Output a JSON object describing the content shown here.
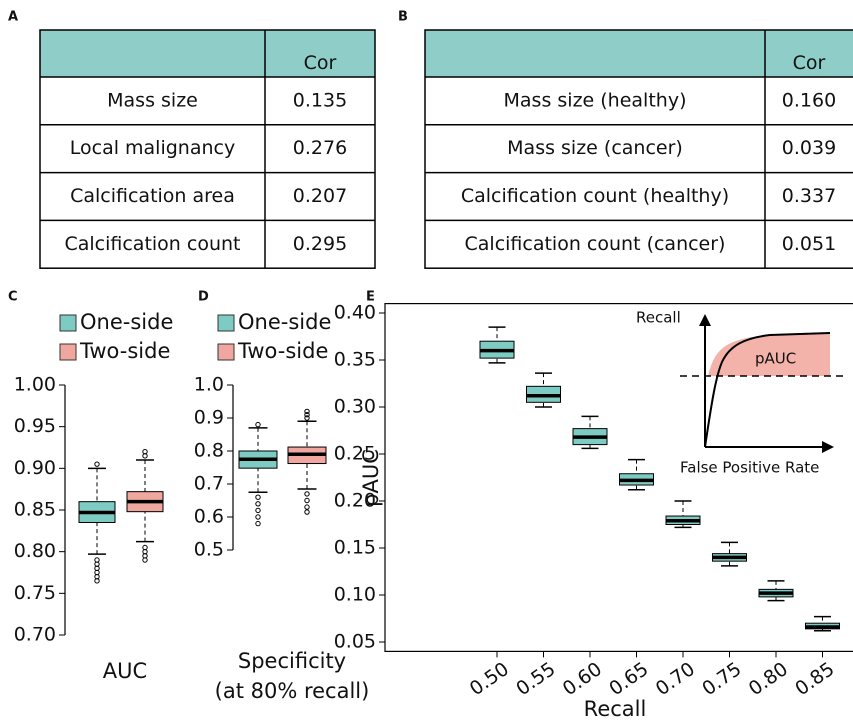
{
  "panel_labels": [
    "A",
    "B",
    "C",
    "D",
    "E"
  ],
  "tables": [
    {
      "header": "Cor",
      "rows": [
        [
          "Mass size",
          "0.135"
        ],
        [
          "Local malignancy",
          "0.276"
        ],
        [
          "Calcification area",
          "0.207"
        ],
        [
          "Calcification count",
          "0.295"
        ]
      ]
    },
    {
      "header": "Cor",
      "rows": [
        [
          "Mass size (healthy)",
          "0.160"
        ],
        [
          "Mass size (cancer)",
          "0.039"
        ],
        [
          "Calcification count (healthy)",
          "0.337"
        ],
        [
          "Calcification count (cancer)",
          "0.051"
        ]
      ]
    }
  ],
  "chart_data": [
    {
      "type": "box",
      "x_label": [
        "AUC"
      ],
      "ylim": [
        0.7,
        1.0
      ],
      "yticks": [
        {
          "value": 0.7,
          "label": "0.70"
        },
        0.75,
        {
          "value": 0.8,
          "label": "0.80"
        },
        0.85,
        {
          "value": 0.9,
          "label": "0.90"
        },
        0.95,
        {
          "value": 1.0,
          "label": "1.00"
        }
      ],
      "series": [
        {
          "name": "One-side",
          "color": "#7ecbc4",
          "boxes": [
            {
              "whislo": 0.797,
              "q1": 0.835,
              "med": 0.847,
              "q3": 0.86,
              "whishi": 0.9,
              "fliers": [
                0.79,
                0.785,
                0.78,
                0.775,
                0.77,
                0.765,
                0.905
              ]
            }
          ]
        },
        {
          "name": "Two-side",
          "color": "#f0a7a0",
          "boxes": [
            {
              "whislo": 0.812,
              "q1": 0.848,
              "med": 0.86,
              "q3": 0.872,
              "whishi": 0.91,
              "fliers": [
                0.805,
                0.8,
                0.795,
                0.79,
                0.915,
                0.92
              ]
            }
          ]
        }
      ]
    },
    {
      "type": "box",
      "x_label": [
        "Specificity",
        "(at 80% recall)"
      ],
      "ylim": [
        0.5,
        1.0
      ],
      "yticks": [
        0.5,
        0.6,
        0.7,
        0.8,
        0.9,
        {
          "value": 1.0,
          "label": "1.0"
        }
      ],
      "series": [
        {
          "name": "One-side",
          "color": "#7ecbc4",
          "boxes": [
            {
              "whislo": 0.675,
              "q1": 0.748,
              "med": 0.775,
              "q3": 0.8,
              "whishi": 0.87,
              "fliers": [
                0.66,
                0.64,
                0.62,
                0.6,
                0.58,
                0.88
              ]
            }
          ]
        },
        {
          "name": "Two-side",
          "color": "#f0a7a0",
          "boxes": [
            {
              "whislo": 0.685,
              "q1": 0.762,
              "med": 0.79,
              "q3": 0.812,
              "whishi": 0.89,
              "fliers": [
                0.67,
                0.65,
                0.63,
                0.615,
                0.9,
                0.91,
                0.92
              ]
            }
          ]
        }
      ]
    },
    {
      "type": "box",
      "x_label": [
        "Recall"
      ],
      "y_label": "pAUC",
      "ylim": [
        0.04,
        0.41
      ],
      "yticks": [
        0.05,
        {
          "value": 0.1,
          "label": "0.10"
        },
        0.15,
        {
          "value": 0.2,
          "label": "0.20"
        },
        0.25,
        {
          "value": 0.3,
          "label": "0.30"
        },
        0.35,
        {
          "value": 0.4,
          "label": "0.40"
        }
      ],
      "categories": [
        "0.50",
        "0.55",
        "0.60",
        "0.65",
        "0.70",
        "0.75",
        "0.80",
        "0.85"
      ],
      "annotations": [
        "Recall",
        "pAUC",
        "False Positive Rate"
      ],
      "series": [
        {
          "color": "#7ecbc4",
          "boxes": [
            {
              "whislo": 0.347,
              "q1": 0.352,
              "med": 0.36,
              "q3": 0.37,
              "whishi": 0.385
            },
            {
              "whislo": 0.3,
              "q1": 0.305,
              "med": 0.312,
              "q3": 0.322,
              "whishi": 0.336
            },
            {
              "whislo": 0.256,
              "q1": 0.26,
              "med": 0.268,
              "q3": 0.277,
              "whishi": 0.29
            },
            {
              "whislo": 0.212,
              "q1": 0.217,
              "med": 0.222,
              "q3": 0.229,
              "whishi": 0.244
            },
            {
              "whislo": 0.172,
              "q1": 0.175,
              "med": 0.179,
              "q3": 0.184,
              "whishi": 0.2
            },
            {
              "whislo": 0.131,
              "q1": 0.136,
              "med": 0.14,
              "q3": 0.144,
              "whishi": 0.156
            },
            {
              "whislo": 0.094,
              "q1": 0.098,
              "med": 0.102,
              "q3": 0.106,
              "whishi": 0.115
            },
            {
              "whislo": 0.062,
              "q1": 0.064,
              "med": 0.066,
              "q3": 0.07,
              "whishi": 0.077
            }
          ]
        }
      ]
    }
  ]
}
